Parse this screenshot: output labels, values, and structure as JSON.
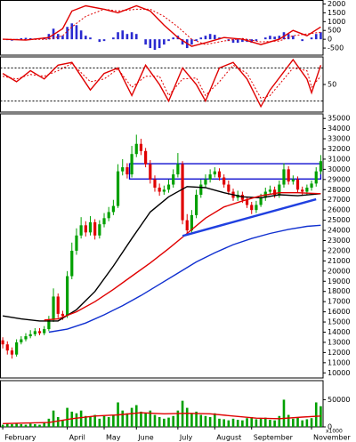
{
  "chart_data": [
    {
      "type": "macd",
      "xlim": [
        -0.5,
        69.5
      ],
      "ylim": [
        -900,
        2200
      ],
      "yticks": [
        -500,
        0,
        500,
        1000,
        1500,
        2000
      ],
      "series": [
        {
          "style": "bars",
          "color": "#2a2ad0",
          "values": [
            0,
            -50,
            -80,
            20,
            60,
            80,
            60,
            40,
            30,
            100,
            300,
            600,
            300,
            200,
            700,
            900,
            800,
            500,
            200,
            100,
            0,
            -150,
            -100,
            0,
            100,
            400,
            500,
            300,
            400,
            300,
            0,
            -300,
            -500,
            -600,
            -500,
            -300,
            -100,
            100,
            200,
            -300,
            -500,
            -300,
            -100,
            100,
            200,
            300,
            250,
            100,
            0,
            -100,
            -200,
            -200,
            -150,
            -150,
            -200,
            -100,
            0,
            100,
            200,
            150,
            200,
            400,
            300,
            200,
            0,
            -100,
            0,
            100,
            300,
            400
          ]
        },
        {
          "style": "line",
          "color": "#e00000",
          "x": [
            0,
            5,
            10,
            13,
            15,
            18,
            22,
            25,
            29,
            32,
            35,
            38,
            41,
            44,
            48,
            52,
            56,
            60,
            63,
            66,
            69
          ],
          "values": [
            0,
            -50,
            100,
            600,
            1600,
            1900,
            1700,
            1500,
            1900,
            1600,
            800,
            100,
            -400,
            -200,
            100,
            0,
            -300,
            0,
            500,
            200,
            700
          ]
        },
        {
          "style": "dotted",
          "color": "#e00000",
          "x": [
            0,
            5,
            10,
            13,
            15,
            18,
            22,
            25,
            29,
            32,
            35,
            38,
            41,
            44,
            48,
            52,
            56,
            60,
            63,
            66,
            69
          ],
          "values": [
            0,
            -20,
            0,
            200,
            700,
            1300,
            1700,
            1600,
            1700,
            1700,
            1300,
            700,
            0,
            -300,
            -100,
            50,
            -150,
            -100,
            200,
            300,
            400
          ]
        }
      ]
    },
    {
      "type": "oscillator",
      "xlim": [
        -0.5,
        69.5
      ],
      "ylim": [
        0,
        100
      ],
      "yticks": [
        50
      ],
      "levels": [
        80,
        20
      ],
      "series": [
        {
          "style": "line",
          "color": "#e00000",
          "x": [
            0,
            3,
            6,
            9,
            12,
            15,
            19,
            22,
            25,
            28,
            31,
            34,
            36,
            39,
            42,
            44,
            47,
            50,
            53,
            56,
            58,
            63,
            66,
            67,
            69
          ],
          "values": [
            70,
            55,
            75,
            60,
            85,
            90,
            40,
            70,
            80,
            30,
            85,
            50,
            20,
            80,
            50,
            20,
            80,
            90,
            60,
            10,
            40,
            95,
            60,
            35,
            85
          ]
        },
        {
          "style": "dotted",
          "color": "#e00000",
          "x": [
            0,
            3,
            6,
            9,
            12,
            15,
            19,
            22,
            25,
            28,
            31,
            34,
            36,
            39,
            42,
            44,
            47,
            50,
            53,
            56,
            58,
            63,
            66,
            67,
            69
          ],
          "values": [
            65,
            60,
            68,
            65,
            75,
            88,
            55,
            60,
            78,
            45,
            65,
            65,
            30,
            60,
            62,
            30,
            55,
            85,
            70,
            25,
            30,
            80,
            75,
            45,
            65
          ]
        }
      ]
    },
    {
      "type": "candlestick",
      "xlim": [
        -0.5,
        69.5
      ],
      "ylim": [
        9500,
        35450
      ],
      "yticks": [
        10000,
        11000,
        12000,
        13000,
        14000,
        15000,
        16000,
        17000,
        18000,
        19000,
        20000,
        21000,
        22000,
        23000,
        24000,
        25000,
        26000,
        27000,
        28000,
        29000,
        30000,
        31000,
        32000,
        33000,
        34000,
        35000
      ],
      "up_color": "#00a000",
      "down_color": "#e00000",
      "open": [
        13200,
        12800,
        12200,
        11800,
        13000,
        13300,
        13600,
        13800,
        14100,
        13900,
        14300,
        15200,
        17500,
        15800,
        15600,
        19500,
        22000,
        23500,
        24500,
        23800,
        24800,
        23500,
        24600,
        25200,
        25800,
        26400,
        29800,
        30200,
        29500,
        31500,
        32500,
        31800,
        30500,
        29000,
        28200,
        27800,
        28000,
        28500,
        29500,
        30500,
        25000,
        24000,
        25500,
        27500,
        28500,
        29000,
        29500,
        29800,
        29200,
        28500,
        27800,
        27200,
        27500,
        27000,
        26500,
        26000,
        26500,
        27200,
        27800,
        28000,
        27500,
        28500,
        30000,
        28800,
        29000,
        28000,
        27800,
        28200,
        28600,
        29800
      ],
      "high": [
        13500,
        13100,
        12500,
        13300,
        13600,
        13900,
        14200,
        14400,
        14400,
        14600,
        15600,
        18300,
        17800,
        16100,
        20000,
        22800,
        24200,
        25300,
        24900,
        25400,
        25100,
        25000,
        25700,
        26300,
        27000,
        30500,
        31000,
        30600,
        32300,
        33400,
        33000,
        32100,
        30900,
        29400,
        28600,
        28400,
        29000,
        30000,
        31600,
        30800,
        25600,
        26000,
        28000,
        29000,
        29500,
        30000,
        30200,
        30100,
        29500,
        28900,
        28100,
        27900,
        27800,
        27300,
        26800,
        26900,
        27600,
        28200,
        28400,
        28300,
        28900,
        30600,
        30300,
        29400,
        29300,
        28300,
        28500,
        28900,
        30200,
        31400
      ],
      "low": [
        12400,
        11800,
        11400,
        11600,
        12800,
        13100,
        13400,
        13600,
        13700,
        13700,
        14100,
        15000,
        15400,
        15200,
        15400,
        19200,
        21600,
        23200,
        23400,
        23500,
        23100,
        23200,
        24300,
        24900,
        25500,
        26200,
        29400,
        29100,
        29200,
        31200,
        31400,
        30200,
        28600,
        27800,
        27400,
        27500,
        27700,
        28200,
        29200,
        24600,
        23500,
        23700,
        25200,
        27200,
        28200,
        28700,
        29200,
        28900,
        28200,
        27500,
        26900,
        26900,
        26700,
        26200,
        25600,
        25700,
        26300,
        26900,
        27500,
        27200,
        27200,
        28200,
        28500,
        28500,
        27700,
        27400,
        27500,
        27900,
        28300,
        29500
      ],
      "close": [
        12800,
        12200,
        11800,
        13000,
        13300,
        13600,
        13800,
        14100,
        13900,
        14300,
        15200,
        17500,
        15800,
        15600,
        19500,
        22000,
        23500,
        24500,
        23800,
        24800,
        23500,
        24600,
        25200,
        25800,
        26400,
        29800,
        30200,
        29500,
        31500,
        32500,
        31800,
        30500,
        29000,
        28200,
        27800,
        28000,
        28500,
        29500,
        30500,
        25000,
        24000,
        25500,
        27500,
        28500,
        29000,
        29500,
        29800,
        29200,
        28500,
        27800,
        27200,
        27500,
        27000,
        26500,
        26000,
        26500,
        27200,
        27800,
        28000,
        27500,
        28500,
        30000,
        28800,
        29000,
        28000,
        27800,
        28200,
        28600,
        29800,
        30800
      ],
      "series": [
        {
          "style": "line",
          "color": "#000000",
          "x": [
            0,
            4,
            8,
            12,
            16,
            20,
            24,
            28,
            32,
            36,
            40,
            44,
            48,
            52,
            56,
            60,
            64,
            69
          ],
          "values": [
            15600,
            15300,
            15100,
            15100,
            16200,
            18000,
            20500,
            23200,
            25800,
            27300,
            28300,
            28200,
            27700,
            27300,
            27200,
            27500,
            27400,
            27600
          ]
        },
        {
          "style": "line",
          "color": "#e00000",
          "x": [
            9,
            12,
            16,
            20,
            24,
            28,
            32,
            36,
            40,
            44,
            48,
            52,
            56,
            60,
            64,
            69
          ],
          "values": [
            15200,
            15300,
            16000,
            17000,
            18200,
            19500,
            20800,
            22200,
            23700,
            25200,
            26300,
            26900,
            27400,
            27700,
            27700,
            27600
          ]
        },
        {
          "style": "line",
          "color": "#1030d0",
          "x": [
            10,
            14,
            18,
            22,
            26,
            30,
            34,
            38,
            42,
            46,
            50,
            54,
            58,
            62,
            66,
            69
          ],
          "values": [
            14000,
            14300,
            14900,
            15700,
            16600,
            17600,
            18700,
            19800,
            20900,
            21800,
            22600,
            23200,
            23700,
            24100,
            24400,
            24500
          ]
        }
      ],
      "zones": [
        {
          "from": 28,
          "to": 69,
          "low": 29050,
          "high": 30550,
          "color": "#0000cc"
        }
      ],
      "trendlines": [
        {
          "x": [
            39,
            68
          ],
          "values": [
            23450,
            27050
          ],
          "color": "#2040e0"
        }
      ]
    },
    {
      "type": "volume",
      "xlim": [
        -0.5,
        69.5
      ],
      "ylim": [
        0,
        85000
      ],
      "yticks": [
        0,
        50000
      ],
      "unit_label": "x1000",
      "series": [
        {
          "style": "bars",
          "color": "#00a000",
          "values": [
            4000,
            6000,
            5000,
            7000,
            5000,
            4000,
            6000,
            5000,
            4000,
            8000,
            15000,
            30000,
            18000,
            12000,
            35000,
            28000,
            25000,
            30000,
            20000,
            18000,
            22000,
            15000,
            20000,
            18000,
            22000,
            45000,
            30000,
            25000,
            35000,
            40000,
            28000,
            25000,
            30000,
            22000,
            18000,
            15000,
            17000,
            20000,
            30000,
            48000,
            35000,
            25000,
            28000,
            22000,
            20000,
            18000,
            25000,
            15000,
            14000,
            12000,
            15000,
            13000,
            12000,
            16000,
            18000,
            14000,
            15000,
            17000,
            13000,
            12000,
            20000,
            50000,
            22000,
            15000,
            18000,
            12000,
            14000,
            16000,
            45000,
            38000
          ]
        },
        {
          "style": "line",
          "color": "#e00000",
          "x": [
            0,
            10,
            15,
            20,
            25,
            30,
            35,
            40,
            45,
            50,
            55,
            60,
            65,
            69
          ],
          "values": [
            6000,
            8000,
            15000,
            20000,
            22000,
            26000,
            24000,
            25000,
            24000,
            20000,
            16000,
            15000,
            18000,
            20000
          ]
        }
      ],
      "xticks": [
        {
          "value": 0,
          "label": "February"
        },
        {
          "value": 14,
          "label": "April"
        },
        {
          "value": 22,
          "label": "May"
        },
        {
          "value": 29,
          "label": "June"
        },
        {
          "value": 38,
          "label": "July"
        },
        {
          "value": 46,
          "label": "August"
        },
        {
          "value": 54,
          "label": "September"
        },
        {
          "value": 67,
          "label": "November"
        }
      ]
    }
  ]
}
